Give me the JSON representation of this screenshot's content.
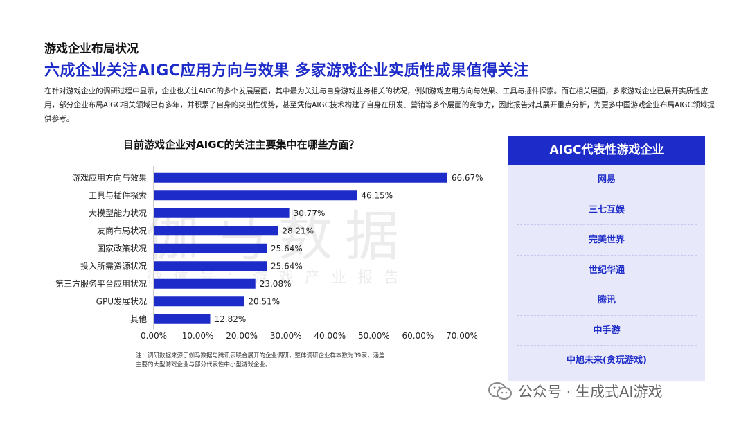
{
  "header": {
    "section_title": "游戏企业布局状况",
    "headline": "六成企业关注AIGC应用方向与效果   多家游戏企业实质性成果值得关注",
    "paragraph": "在针对游戏企业的调研过程中显示，企业也关注AIGC的多个发展层面，其中最为关注与自身游戏业务相关的状况，例如游戏应用方向与效果、工具与插件探索。而在相关层面，多家游戏企业已展开实质性应用，部分企业布局AIGC相关领域已有多年，并积累了自身的突出性优势，甚至凭借AIGC技术构建了自身在研发、营销等多个层面的竞争力，因此报告对其展开重点分析，为更多中国游戏企业布局AIGC领域提供参考。"
  },
  "chart_data": {
    "type": "bar",
    "orientation": "horizontal",
    "title": "目前游戏企业对AIGC的关注主要集中在哪些方面？",
    "categories": [
      "游戏应用方向与效果",
      "工具与插件探索",
      "大模型能力状况",
      "友商布局状况",
      "国家政策状况",
      "投入所需资源状况",
      "第三方服务平台应用状况",
      "GPU发展状况",
      "其他"
    ],
    "values": [
      66.67,
      46.15,
      30.77,
      28.21,
      25.64,
      25.64,
      23.08,
      20.51,
      12.82
    ],
    "value_labels": [
      "66.67%",
      "46.15%",
      "30.77%",
      "28.21%",
      "25.64%",
      "25.64%",
      "23.08%",
      "20.51%",
      "12.82%"
    ],
    "xlim": [
      0,
      70
    ],
    "xticks": [
      0,
      10,
      20,
      30,
      40,
      50,
      60,
      70
    ],
    "xtick_labels": [
      "0.00%",
      "10.00%",
      "20.00%",
      "30.00%",
      "40.00%",
      "50.00%",
      "60.00%",
      "70.00%"
    ],
    "xlabel": "",
    "ylabel": "",
    "grid": false,
    "bar_color": "#1d2bc9"
  },
  "watermark": {
    "big": "伽马数据",
    "small": "微信号：游戏产业报告"
  },
  "note": "注：调研数据来源于伽马数据与腾讯云联合展开的企业调研，整体调研企业样本数为39家，涵盖主要的大型游戏企业与部分代表性中小型游戏企业。",
  "panel": {
    "title": "AIGC代表性游戏企业",
    "items": [
      "网易",
      "三七互娱",
      "完美世界",
      "世纪华通",
      "腾讯",
      "中手游",
      "中旭未来(贪玩游戏)"
    ]
  },
  "footer": {
    "text": "公众号 · 生成式AI游戏",
    "icon": "wechat-icon"
  },
  "colors": {
    "accent": "#1d2bc9",
    "panel_bg": "#e7e8f9"
  }
}
